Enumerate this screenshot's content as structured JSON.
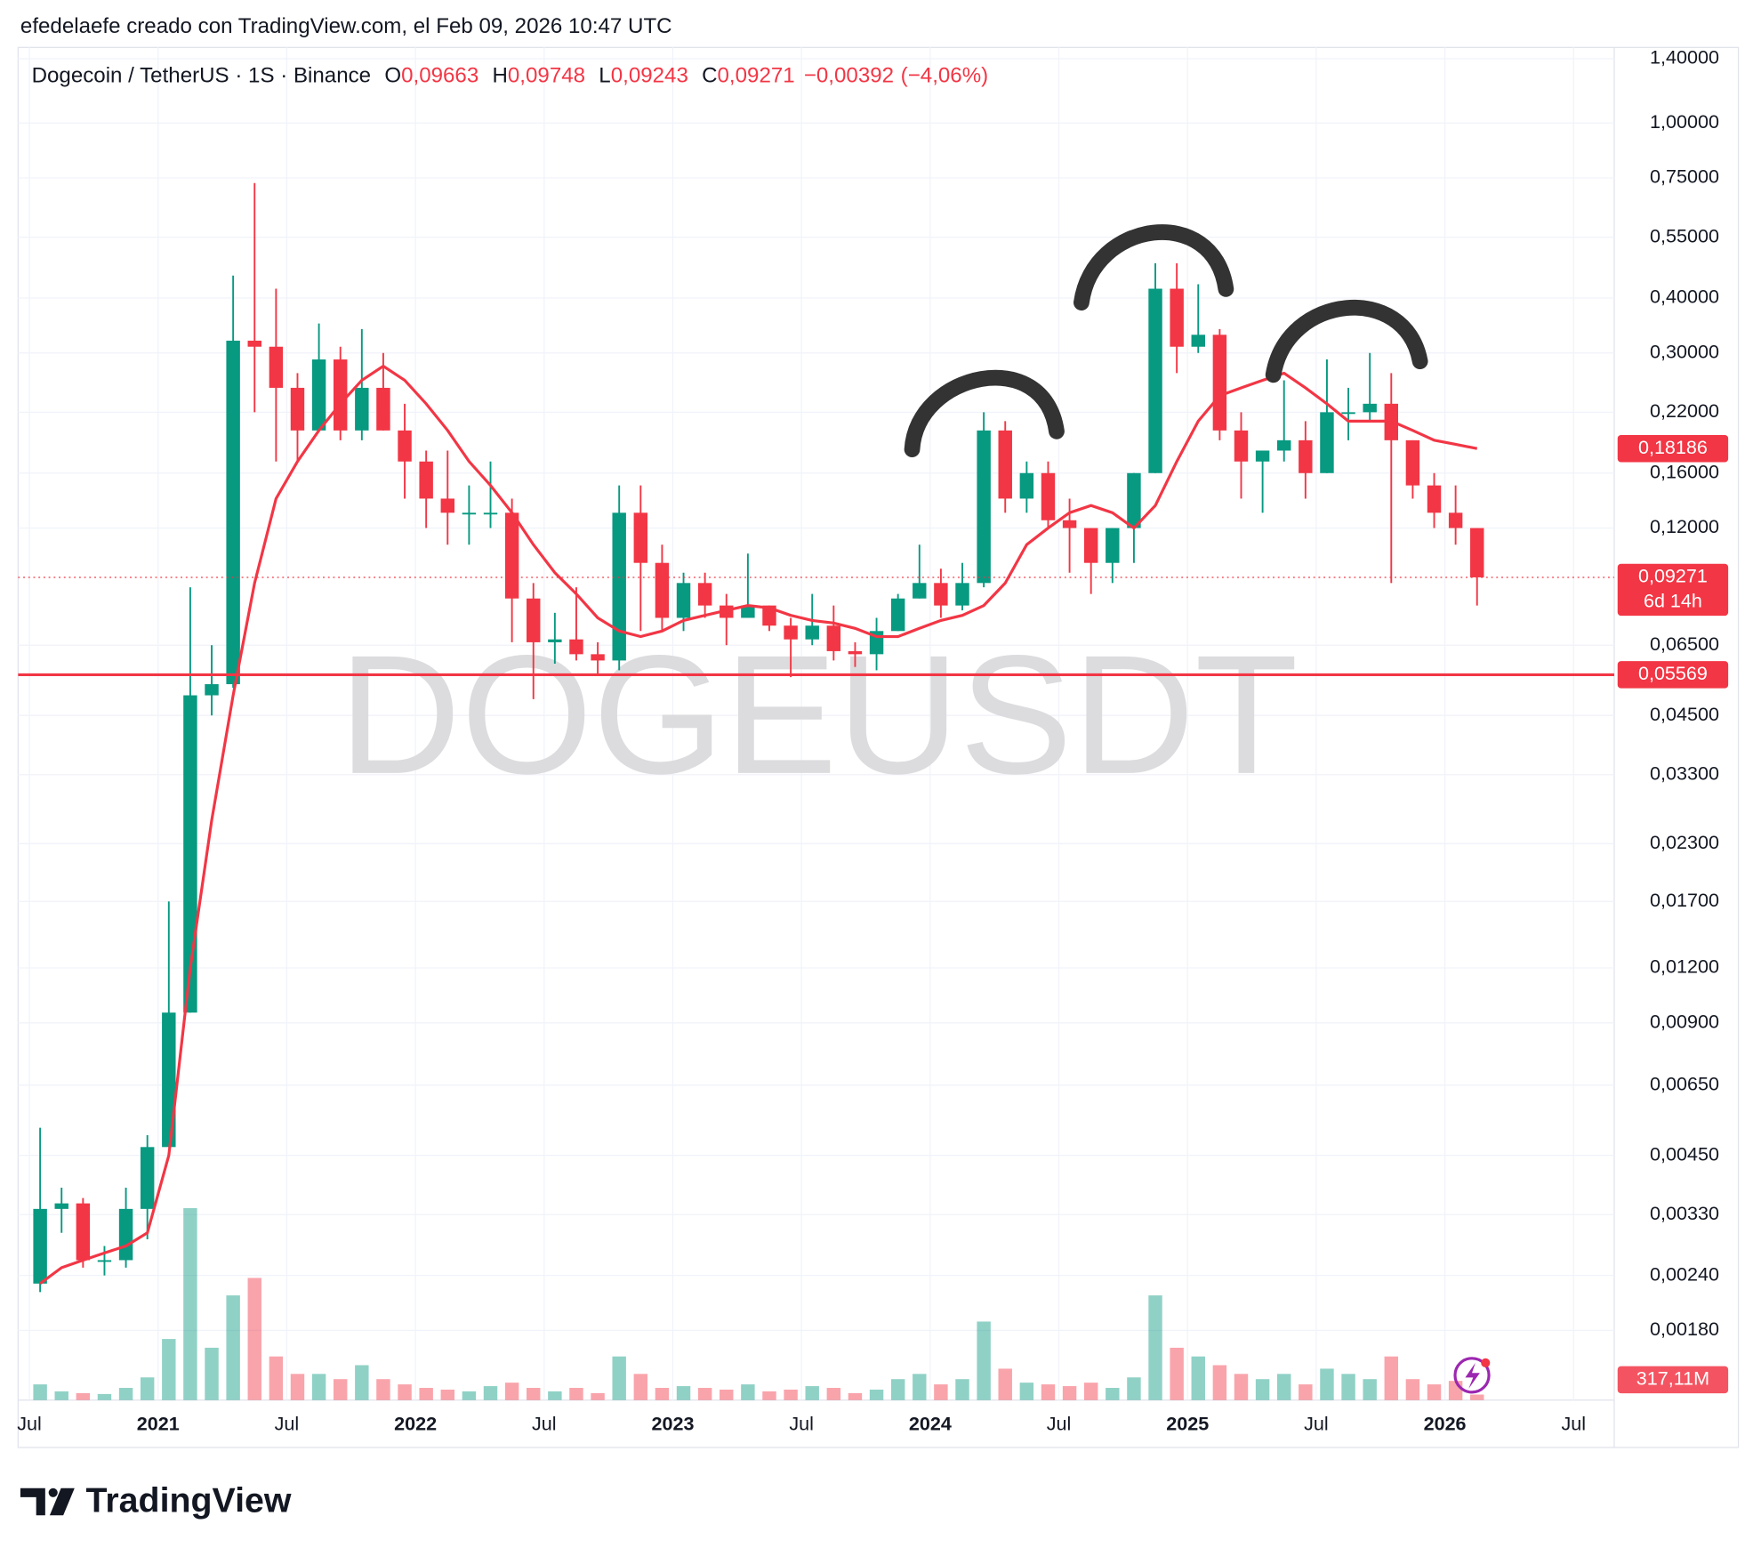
{
  "chart_data": {
    "type": "candlestick",
    "credit": "efedelaefe creado con TradingView.com, el Feb 09, 2026 10:47 UTC",
    "title": "Dogecoin / TetherUS · 1S · Binance",
    "legend_ohlc": [
      {
        "name": "O",
        "value": 0.09663,
        "label": "0,09663"
      },
      {
        "name": "H",
        "value": 0.09748,
        "label": "0,09748"
      },
      {
        "name": "L",
        "value": 0.09243,
        "label": "0,09243"
      },
      {
        "name": "C",
        "value": 0.09271,
        "label": "0,09271"
      }
    ],
    "change": {
      "value": -0.00392,
      "label": "−0,00392"
    },
    "change_pct": {
      "value": -4.06,
      "label": "(−4,06%)"
    },
    "watermark": "DOGEUSDT",
    "brand": "TradingView",
    "log_scale": true,
    "grid": true,
    "up_color": "#089981",
    "down_color": "#f23645",
    "x": [
      "2020-07",
      "2020-08",
      "2020-09",
      "2020-10",
      "2020-11",
      "2020-12",
      "2021-01",
      "2021-02",
      "2021-03",
      "2021-04",
      "2021-05",
      "2021-06",
      "2021-07",
      "2021-08",
      "2021-09",
      "2021-10",
      "2021-11",
      "2021-12",
      "2022-01",
      "2022-02",
      "2022-03",
      "2022-04",
      "2022-05",
      "2022-06",
      "2022-07",
      "2022-08",
      "2022-09",
      "2022-10",
      "2022-11",
      "2022-12",
      "2023-01",
      "2023-02",
      "2023-03",
      "2023-04",
      "2023-05",
      "2023-06",
      "2023-07",
      "2023-08",
      "2023-09",
      "2023-10",
      "2023-11",
      "2023-12",
      "2024-01",
      "2024-02",
      "2024-03",
      "2024-04",
      "2024-05",
      "2024-06",
      "2024-07",
      "2024-08",
      "2024-09",
      "2024-10",
      "2024-11",
      "2024-12",
      "2025-01",
      "2025-02",
      "2025-03",
      "2025-04",
      "2025-05",
      "2025-06",
      "2025-07",
      "2025-08",
      "2025-09",
      "2025-10",
      "2025-11",
      "2025-12",
      "2026-01",
      "2026-02"
    ],
    "series": [
      {
        "open": [
          0.0023,
          0.0034,
          0.0035,
          0.0026,
          0.0026,
          0.0034,
          0.0047,
          0.0095,
          0.05,
          0.053,
          0.32,
          0.31,
          0.25,
          0.2,
          0.29,
          0.2,
          0.25,
          0.2,
          0.17,
          0.14,
          0.13,
          0.13,
          0.13,
          0.083,
          0.066,
          0.067,
          0.062,
          0.06,
          0.13,
          0.1,
          0.075,
          0.09,
          0.08,
          0.075,
          0.08,
          0.072,
          0.067,
          0.072,
          0.063,
          0.062,
          0.07,
          0.083,
          0.09,
          0.08,
          0.09,
          0.2,
          0.14,
          0.16,
          0.125,
          0.12,
          0.1,
          0.12,
          0.16,
          0.42,
          0.31,
          0.33,
          0.2,
          0.17,
          0.18,
          0.19,
          0.16,
          0.22,
          0.22,
          0.23,
          0.19,
          0.15,
          0.13,
          0.12
        ],
        "high": [
          0.0052,
          0.0038,
          0.0036,
          0.0028,
          0.0038,
          0.005,
          0.017,
          0.088,
          0.065,
          0.45,
          0.73,
          0.42,
          0.27,
          0.35,
          0.31,
          0.34,
          0.3,
          0.23,
          0.18,
          0.18,
          0.15,
          0.17,
          0.14,
          0.09,
          0.077,
          0.088,
          0.066,
          0.15,
          0.15,
          0.11,
          0.095,
          0.095,
          0.085,
          0.105,
          0.08,
          0.075,
          0.085,
          0.08,
          0.066,
          0.075,
          0.085,
          0.11,
          0.097,
          0.1,
          0.22,
          0.21,
          0.17,
          0.17,
          0.14,
          0.12,
          0.12,
          0.16,
          0.48,
          0.48,
          0.43,
          0.34,
          0.22,
          0.18,
          0.26,
          0.21,
          0.29,
          0.25,
          0.3,
          0.27,
          0.19,
          0.16,
          0.15,
          0.12
        ],
        "low": [
          0.0022,
          0.003,
          0.0025,
          0.0024,
          0.0025,
          0.0029,
          0.0047,
          0.0095,
          0.045,
          0.052,
          0.22,
          0.17,
          0.17,
          0.2,
          0.19,
          0.19,
          0.2,
          0.14,
          0.12,
          0.11,
          0.11,
          0.12,
          0.066,
          0.049,
          0.059,
          0.06,
          0.056,
          0.057,
          0.07,
          0.07,
          0.07,
          0.075,
          0.065,
          0.075,
          0.07,
          0.055,
          0.065,
          0.06,
          0.058,
          0.057,
          0.07,
          0.083,
          0.075,
          0.078,
          0.088,
          0.13,
          0.13,
          0.12,
          0.095,
          0.085,
          0.09,
          0.1,
          0.16,
          0.27,
          0.3,
          0.19,
          0.14,
          0.13,
          0.17,
          0.14,
          0.16,
          0.19,
          0.21,
          0.09,
          0.14,
          0.12,
          0.11,
          0.08
        ],
        "close": [
          0.0034,
          0.0035,
          0.0026,
          0.0026,
          0.0034,
          0.0047,
          0.0095,
          0.05,
          0.053,
          0.32,
          0.31,
          0.25,
          0.2,
          0.29,
          0.2,
          0.25,
          0.2,
          0.17,
          0.14,
          0.13,
          0.13,
          0.13,
          0.083,
          0.066,
          0.067,
          0.062,
          0.06,
          0.13,
          0.1,
          0.075,
          0.09,
          0.08,
          0.075,
          0.08,
          0.072,
          0.067,
          0.072,
          0.063,
          0.062,
          0.07,
          0.083,
          0.09,
          0.08,
          0.09,
          0.2,
          0.14,
          0.16,
          0.125,
          0.12,
          0.1,
          0.12,
          0.16,
          0.42,
          0.31,
          0.33,
          0.2,
          0.17,
          0.18,
          0.19,
          0.16,
          0.22,
          0.22,
          0.23,
          0.19,
          0.15,
          0.13,
          0.12,
          0.09271
        ]
      }
    ],
    "ma": {
      "color": "#f23645",
      "values": [
        0.0023,
        0.0025,
        0.0026,
        0.0027,
        0.0028,
        0.003,
        0.0045,
        0.012,
        0.026,
        0.05,
        0.09,
        0.14,
        0.17,
        0.2,
        0.23,
        0.26,
        0.28,
        0.26,
        0.23,
        0.2,
        0.17,
        0.15,
        0.13,
        0.11,
        0.095,
        0.085,
        0.075,
        0.07,
        0.068,
        0.07,
        0.074,
        0.076,
        0.078,
        0.08,
        0.079,
        0.076,
        0.074,
        0.073,
        0.071,
        0.068,
        0.068,
        0.071,
        0.074,
        0.076,
        0.08,
        0.09,
        0.11,
        0.12,
        0.13,
        0.135,
        0.13,
        0.12,
        0.135,
        0.17,
        0.21,
        0.24,
        0.25,
        0.26,
        0.27,
        0.25,
        0.23,
        0.21,
        0.21,
        0.21,
        0.2,
        0.19,
        0.186,
        0.18186
      ]
    },
    "ma_last": {
      "value": 0.18186,
      "label": "0,18186"
    },
    "volume": {
      "values": [
        900,
        500,
        400,
        350,
        700,
        1300,
        3500,
        11000,
        3000,
        6000,
        7000,
        2500,
        1500,
        1500,
        1200,
        2000,
        1200,
        900,
        700,
        600,
        500,
        800,
        1000,
        700,
        500,
        700,
        400,
        2500,
        1500,
        700,
        800,
        700,
        600,
        900,
        500,
        600,
        800,
        700,
        400,
        600,
        1200,
        1500,
        900,
        1200,
        4500,
        1800,
        1000,
        900,
        800,
        1000,
        700,
        1300,
        6000,
        3000,
        2500,
        2000,
        1500,
        1200,
        1500,
        900,
        1800,
        1500,
        1200,
        2500,
        1200,
        900,
        1100,
        317.11
      ],
      "last": {
        "value": 317.11,
        "label": "317,11M"
      }
    },
    "last_price": {
      "value": 0.09271,
      "label": "0,09271",
      "countdown": "6d 14h"
    },
    "price_line": {
      "value": 0.05569,
      "label": "0,05569",
      "color": "#f23645"
    },
    "xlim": [
      "2020-07",
      "2026-09"
    ],
    "xticks": [
      {
        "value": "2020-07",
        "label": "Jul"
      },
      {
        "value": "2021-01",
        "label": "2021"
      },
      {
        "value": "2021-07",
        "label": "Jul"
      },
      {
        "value": "2022-01",
        "label": "2022"
      },
      {
        "value": "2022-07",
        "label": "Jul"
      },
      {
        "value": "2023-01",
        "label": "2023"
      },
      {
        "value": "2023-07",
        "label": "Jul"
      },
      {
        "value": "2024-01",
        "label": "2024"
      },
      {
        "value": "2024-07",
        "label": "Jul"
      },
      {
        "value": "2025-01",
        "label": "2025"
      },
      {
        "value": "2025-07",
        "label": "Jul"
      },
      {
        "value": "2026-01",
        "label": "2026"
      },
      {
        "value": "2026-07",
        "label": "Jul"
      }
    ],
    "ylim": [
      0.00125,
      1.485
    ],
    "yticks": [
      {
        "value": 1.4,
        "label": "1,40000"
      },
      {
        "value": 1.0,
        "label": "1,00000"
      },
      {
        "value": 0.75,
        "label": "0,75000"
      },
      {
        "value": 0.55,
        "label": "0,55000"
      },
      {
        "value": 0.4,
        "label": "0,40000"
      },
      {
        "value": 0.3,
        "label": "0,30000"
      },
      {
        "value": 0.22,
        "label": "0,22000"
      },
      {
        "value": 0.16,
        "label": "0,16000"
      },
      {
        "value": 0.12,
        "label": "0,12000"
      },
      {
        "value": 0.065,
        "label": "0,06500"
      },
      {
        "value": 0.045,
        "label": "0,04500"
      },
      {
        "value": 0.033,
        "label": "0,03300"
      },
      {
        "value": 0.023,
        "label": "0,02300"
      },
      {
        "value": 0.017,
        "label": "0,01700"
      },
      {
        "value": 0.012,
        "label": "0,01200"
      },
      {
        "value": 0.009,
        "label": "0,00900"
      },
      {
        "value": 0.0065,
        "label": "0,00650"
      },
      {
        "value": 0.0045,
        "label": "0,00450"
      },
      {
        "value": 0.0033,
        "label": "0,00330"
      },
      {
        "value": 0.0024,
        "label": "0,00240"
      },
      {
        "value": 0.0018,
        "label": "0,00180"
      }
    ]
  }
}
